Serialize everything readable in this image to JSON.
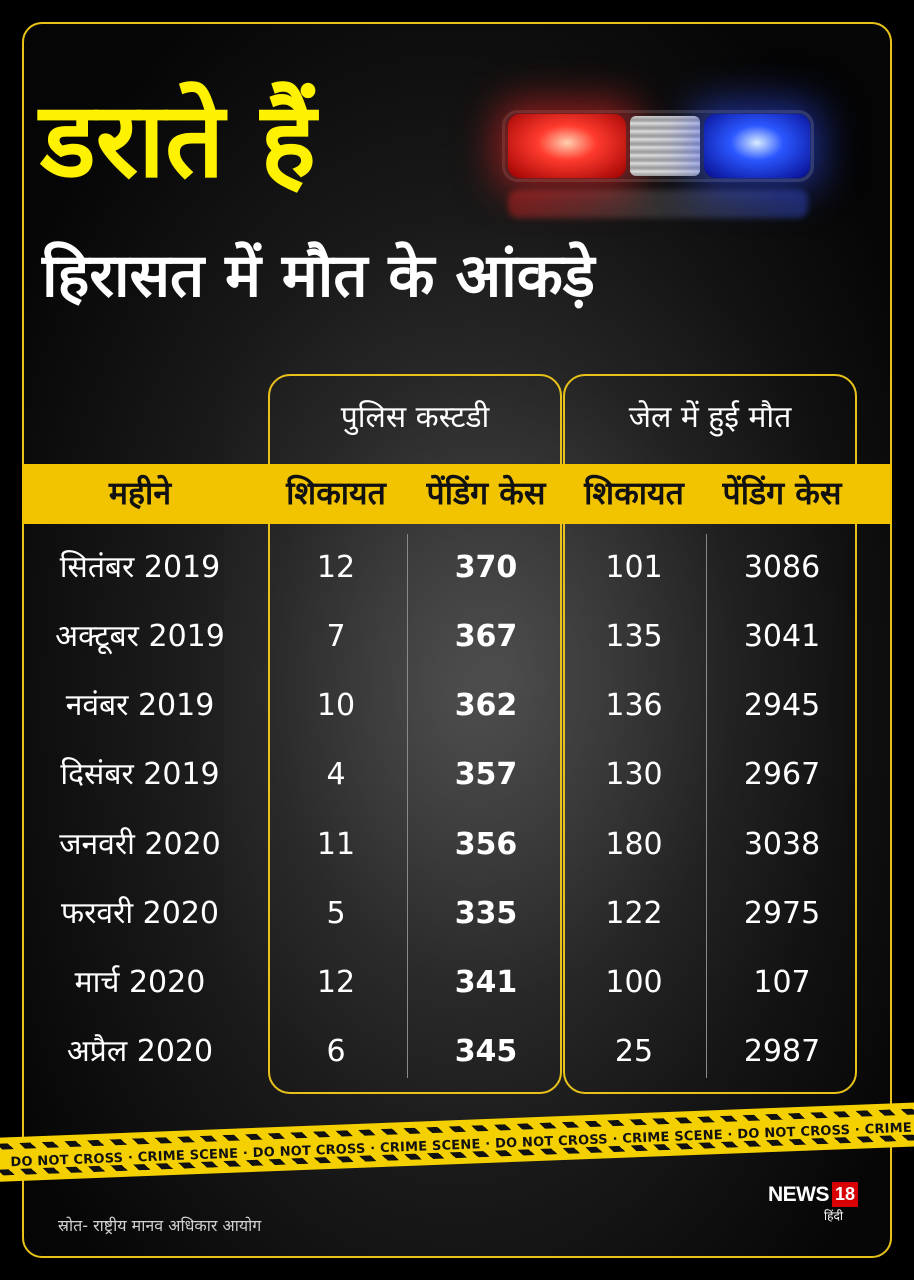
{
  "title": "डराते हैं",
  "subtitle": "हिरासत में मौत के आंकड़े",
  "groups": {
    "police": "पुलिस कस्टडी",
    "jail": "जेल में हुई मौत"
  },
  "headers": {
    "month": "महीने",
    "police_complaints": "शिकायत",
    "police_pending": "पेंडिंग केस",
    "jail_complaints": "शिकायत",
    "jail_pending": "पेंडिंग केस"
  },
  "rows": [
    {
      "month": "सितंबर 2019",
      "police_complaints": "12",
      "police_pending": "370",
      "jail_complaints": "101",
      "jail_pending": "3086"
    },
    {
      "month": "अक्टूबर 2019",
      "police_complaints": "7",
      "police_pending": "367",
      "jail_complaints": "135",
      "jail_pending": "3041"
    },
    {
      "month": "नवंबर 2019",
      "police_complaints": "10",
      "police_pending": "362",
      "jail_complaints": "136",
      "jail_pending": "2945"
    },
    {
      "month": "दिसंबर 2019",
      "police_complaints": "4",
      "police_pending": "357",
      "jail_complaints": "130",
      "jail_pending": "2967"
    },
    {
      "month": "जनवरी 2020",
      "police_complaints": "11",
      "police_pending": "356",
      "jail_complaints": "180",
      "jail_pending": "3038"
    },
    {
      "month": "फरवरी 2020",
      "police_complaints": "5",
      "police_pending": "335",
      "jail_complaints": "122",
      "jail_pending": "2975"
    },
    {
      "month": "मार्च 2020",
      "police_complaints": "12",
      "police_pending": "341",
      "jail_complaints": "100",
      "jail_pending": "107"
    },
    {
      "month": "अप्रैल 2020",
      "police_complaints": "6",
      "police_pending": "345",
      "jail_complaints": "25",
      "jail_pending": "2987"
    }
  ],
  "tape_text": "DO NOT CROSS · CRIME SCENE · DO NOT CROSS · CRIME SCENE · DO NOT CROSS · CRIME SCENE · DO NOT CROSS · CRIME SCENE · DO NOT CROSS · CRIME SCENE",
  "source": "स्रोत- राष्ट्रीय मानव अधिकार आयोग",
  "logo": {
    "word": "NEWS",
    "number": "18",
    "lang": "हिंदी"
  },
  "colors": {
    "accent_yellow": "#f2c400",
    "title_yellow": "#fff200",
    "background": "#000000",
    "logo_red": "#d80000"
  }
}
